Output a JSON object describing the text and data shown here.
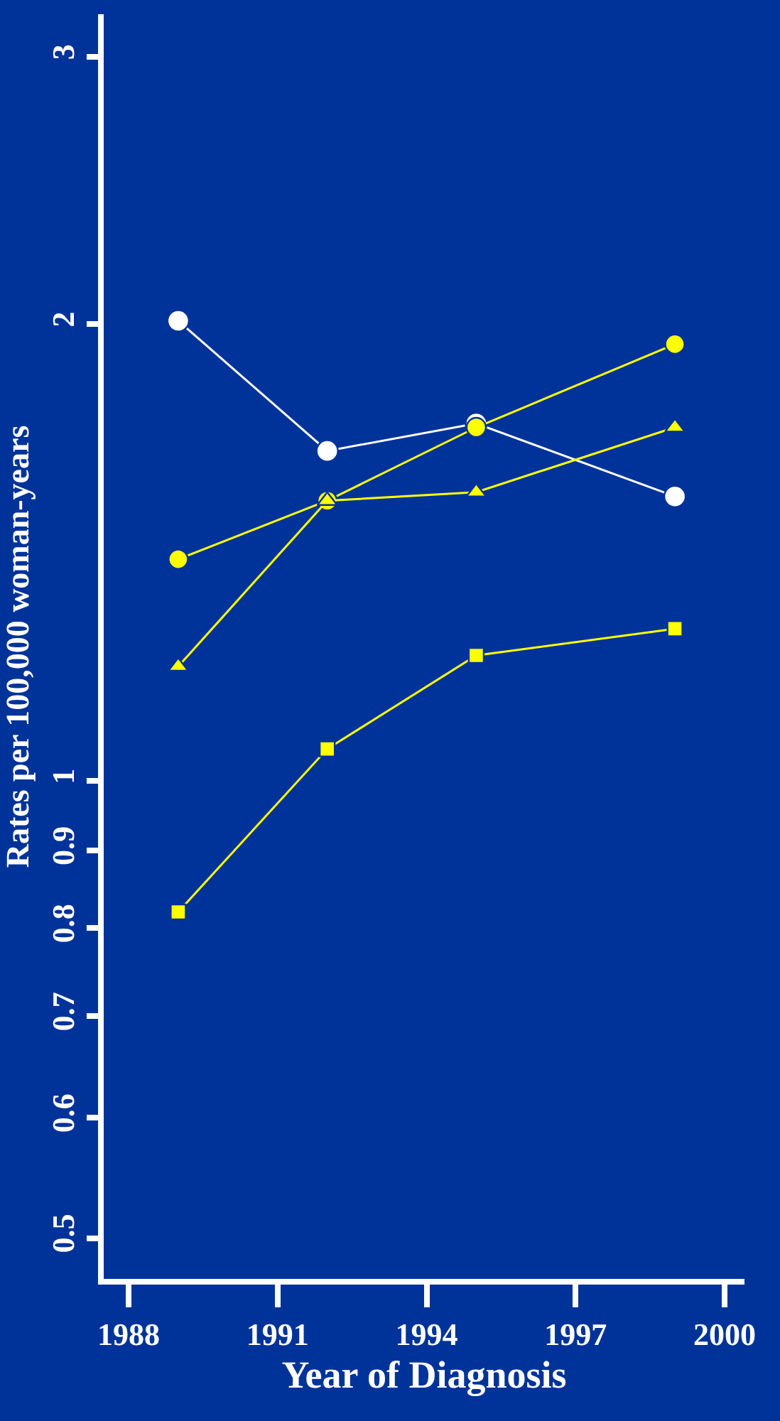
{
  "chart_data": {
    "type": "line",
    "xlabel": "Year of Diagnosis",
    "ylabel": "Rates per 100,000 woman-years",
    "x": [
      1989,
      1992,
      1995,
      1999
    ],
    "series": [
      {
        "color": "#ffffff",
        "marker": "circle",
        "values": [
          2.01,
          1.65,
          1.72,
          1.54
        ]
      },
      {
        "color": "#ffff00",
        "marker": "circle",
        "values": [
          1.4,
          1.53,
          1.71,
          1.94
        ]
      },
      {
        "color": "#ffff00",
        "marker": "triangle",
        "values": [
          1.19,
          1.53,
          1.55,
          1.71
        ]
      },
      {
        "color": "#ffff00",
        "marker": "square",
        "values": [
          0.82,
          1.05,
          1.21,
          1.26
        ]
      }
    ],
    "log": "y",
    "xlim": [
      1987.5,
      2000.4
    ],
    "xticks": [
      1988,
      1991,
      1994,
      1997,
      2000
    ],
    "ylim": [
      0.47,
      3.2
    ],
    "yticks": [
      0.5,
      0.6,
      0.7,
      0.8,
      0.9,
      1,
      2,
      3
    ],
    "grid": false,
    "line_style": "solid"
  }
}
